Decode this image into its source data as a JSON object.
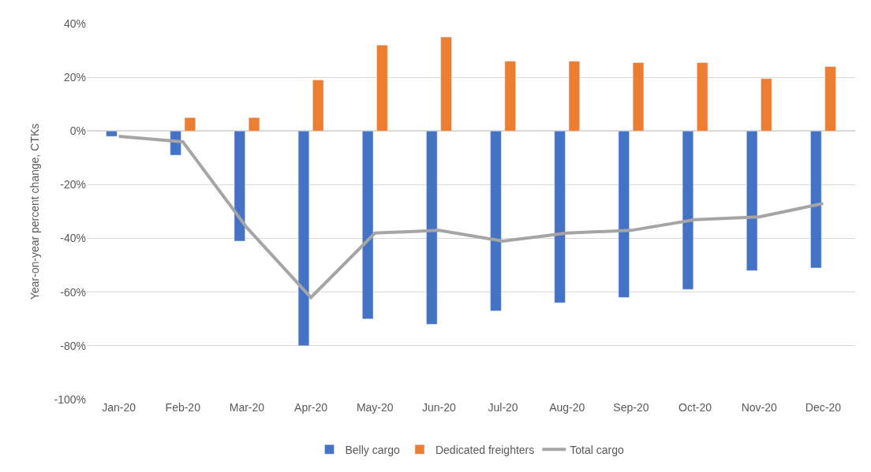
{
  "chart_data": {
    "type": "bar",
    "ylabel": "Year-on-year percent change, CTKs",
    "categories": [
      "Jan-20",
      "Feb-20",
      "Mar-20",
      "Apr-20",
      "May-20",
      "Jun-20",
      "Jul-20",
      "Aug-20",
      "Sep-20",
      "Oct-20",
      "Nov-20",
      "Dec-20"
    ],
    "series": [
      {
        "name": "Belly cargo",
        "color": "#4472c4",
        "values": [
          -2,
          -9,
          -41,
          -80,
          -70,
          -72,
          -67,
          -64,
          -62,
          -59,
          -52,
          -51
        ]
      },
      {
        "name": "Dedicated freighters",
        "color": "#ed7d31",
        "values": [
          null,
          5,
          5,
          19,
          32,
          35,
          26,
          26,
          25.5,
          25.5,
          19.5,
          24
        ]
      },
      {
        "name": "Total cargo",
        "type": "line",
        "color": "#a5a5a5",
        "marker": "none",
        "values": [
          -2,
          -4,
          -36,
          -62,
          -38,
          -37,
          -41,
          -38,
          -37,
          -33,
          -32,
          -27
        ]
      }
    ],
    "ylim": [
      -100,
      40
    ],
    "yticks": [
      {
        "value": -100,
        "label": "-100%"
      },
      {
        "value": -80,
        "label": "-80%"
      },
      {
        "value": -60,
        "label": "-60%"
      },
      {
        "value": -40,
        "label": "-40%"
      },
      {
        "value": -20,
        "label": "-20%"
      },
      {
        "value": 0,
        "label": "0%"
      },
      {
        "value": 20,
        "label": "20%"
      },
      {
        "value": 40,
        "label": "40%"
      }
    ],
    "grid": "y",
    "legend": "bottom"
  }
}
